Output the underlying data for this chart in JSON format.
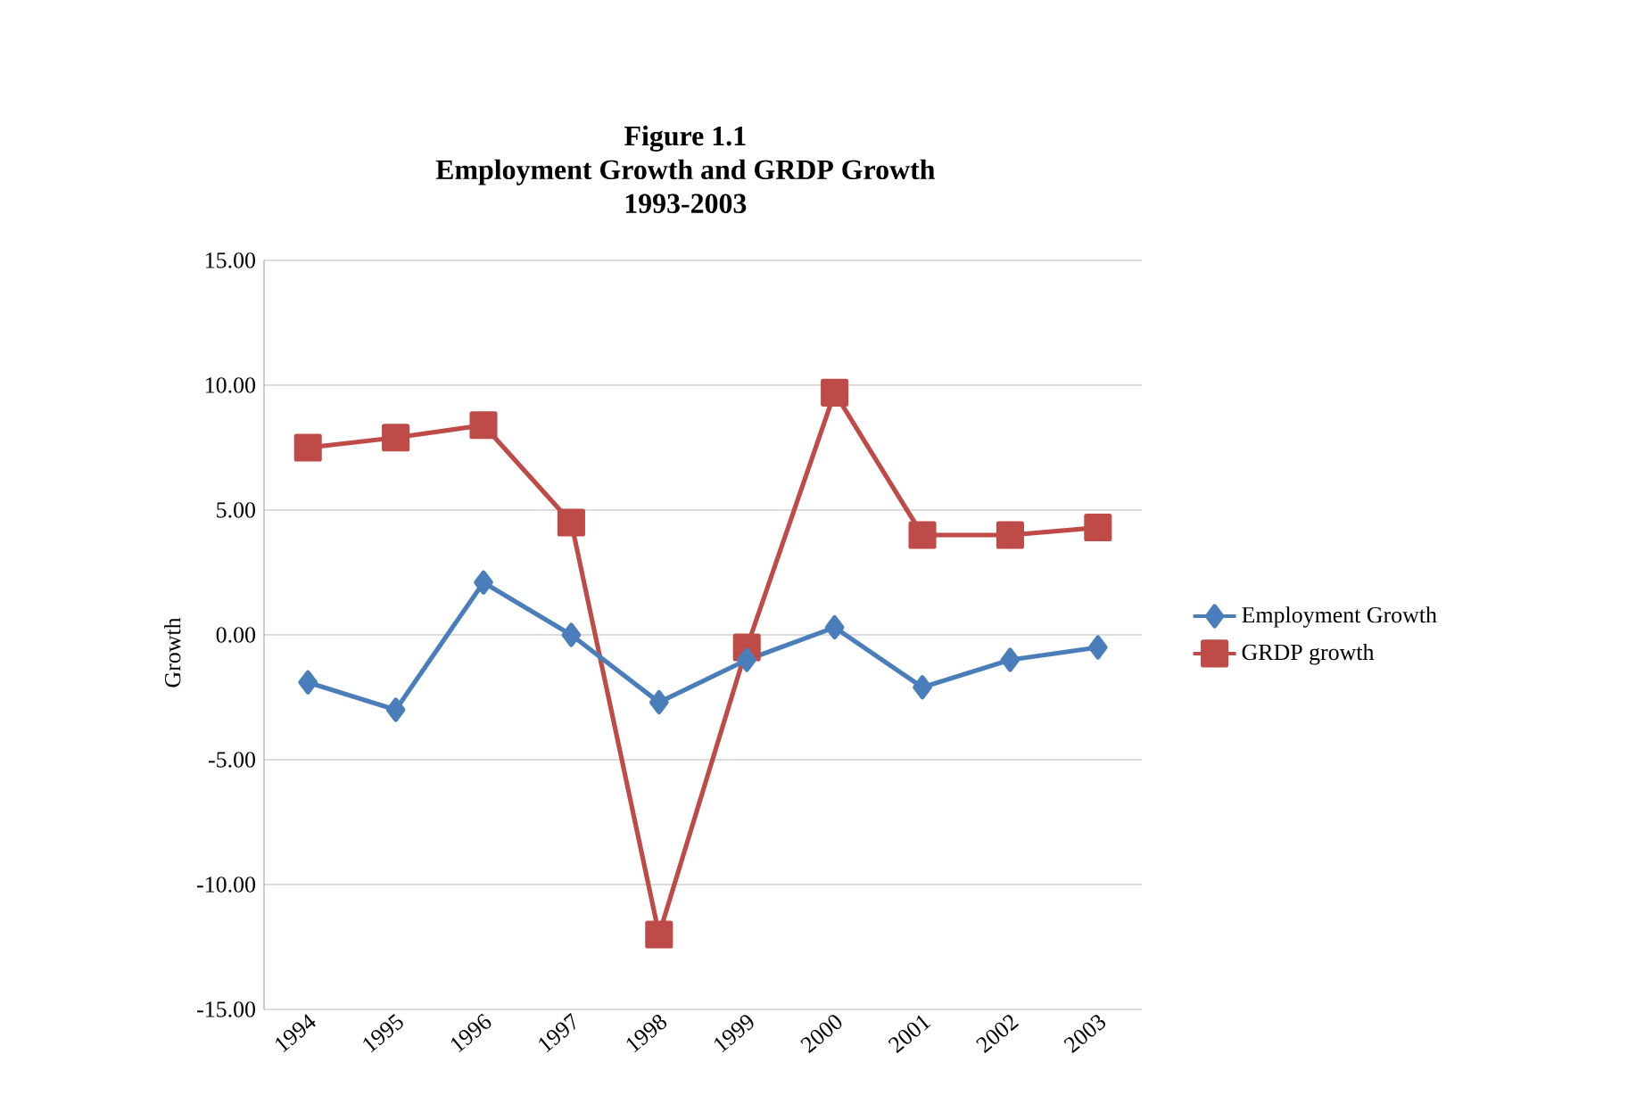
{
  "chart_data": {
    "type": "line",
    "title": "**Figure 1.1**\n**Employment Growth and GRDP Growth**\n**1993-2003**",
    "ylabel": "Growth",
    "categories": [
      "1994",
      "1995",
      "1996",
      "1997",
      "1998",
      "1999",
      "2000",
      "2001",
      "2002",
      "2003"
    ],
    "series": [
      {
        "name": "Employment Growth",
        "color": "#4a7ebb",
        "marker": "diamond",
        "values": [
          -1.9,
          -3.0,
          2.1,
          0.0,
          -2.7,
          -1.0,
          0.3,
          -2.1,
          -1.0,
          -0.5
        ]
      },
      {
        "name": "GRDP growth",
        "color": "#be4b48",
        "marker": "square",
        "values": [
          7.5,
          7.9,
          8.4,
          4.5,
          -12.0,
          -0.5,
          9.7,
          4.0,
          4.0,
          4.3
        ]
      }
    ],
    "ylim": [
      -15,
      15
    ],
    "yticks": [
      {
        "value": -15,
        "label": "-15.00"
      },
      {
        "value": -10,
        "label": "-10.00"
      },
      {
        "value": -5,
        "label": "-5.00"
      },
      {
        "value": 0,
        "label": "0.00"
      },
      {
        "value": 5,
        "label": "5.00"
      },
      {
        "value": 10,
        "label": "10.00"
      },
      {
        "value": 15,
        "label": "15.00"
      }
    ],
    "grid": "y",
    "legend": "right"
  }
}
